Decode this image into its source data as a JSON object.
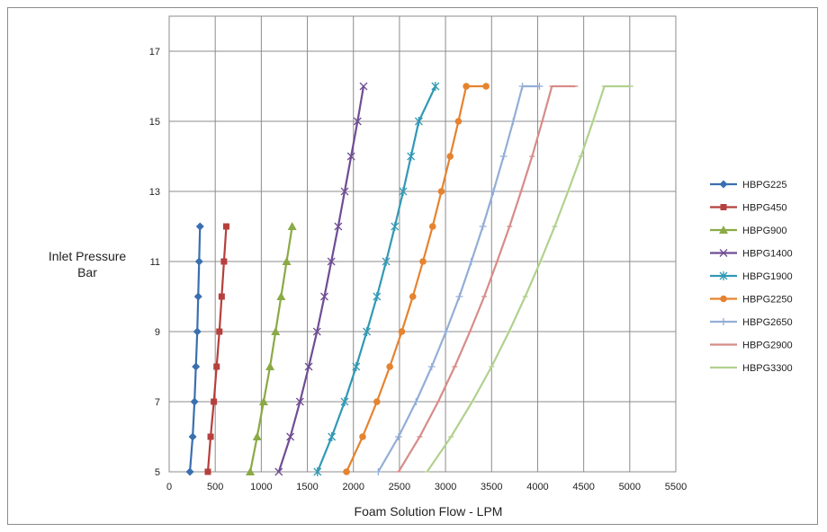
{
  "chart_data": {
    "type": "line",
    "title": "",
    "xlabel": "Foam Solution Flow - LPM",
    "ylabel_lines": [
      "Inlet Pressure",
      "Bar"
    ],
    "xlim": [
      0,
      5500
    ],
    "ylim": [
      5,
      18
    ],
    "xticks": [
      0,
      500,
      1000,
      1500,
      2000,
      2500,
      3000,
      3500,
      4000,
      4500,
      5000,
      5500
    ],
    "yticks": [
      5,
      7,
      9,
      11,
      13,
      15,
      17
    ],
    "grid": true,
    "legend_position": "right",
    "series": [
      {
        "name": "HBPG225",
        "color": "#3a6fb0",
        "marker": "diamond",
        "x": [
          225,
          255,
          275,
          290,
          305,
          315,
          325,
          335
        ],
        "y": [
          5,
          6,
          7,
          8,
          9,
          10,
          11,
          12
        ]
      },
      {
        "name": "HBPG450",
        "color": "#b5403d",
        "marker": "square",
        "x": [
          420,
          450,
          485,
          515,
          545,
          570,
          595,
          620
        ],
        "y": [
          5,
          6,
          7,
          8,
          9,
          10,
          11,
          12
        ]
      },
      {
        "name": "HBPG900",
        "color": "#8aaa45",
        "marker": "triangle",
        "x": [
          880,
          955,
          1025,
          1095,
          1155,
          1215,
          1275,
          1335
        ],
        "y": [
          5,
          6,
          7,
          8,
          9,
          10,
          11,
          12
        ]
      },
      {
        "name": "HBPG1400",
        "color": "#6f4d94",
        "marker": "x",
        "x": [
          1190,
          1315,
          1420,
          1515,
          1605,
          1685,
          1760,
          1835,
          1905,
          1975,
          2045,
          2110
        ],
        "y": [
          5,
          6,
          7,
          8,
          9,
          10,
          11,
          12,
          13,
          14,
          15,
          16
        ]
      },
      {
        "name": "HBPG1900",
        "color": "#3199b4",
        "marker": "asterisk",
        "x": [
          1610,
          1765,
          1905,
          2030,
          2145,
          2255,
          2355,
          2450,
          2540,
          2625,
          2710,
          2890
        ],
        "y": [
          5,
          6,
          7,
          8,
          9,
          10,
          11,
          12,
          13,
          14,
          15,
          16
        ]
      },
      {
        "name": "HBPG2250",
        "color": "#e5832f",
        "marker": "circle",
        "x": [
          1925,
          2100,
          2255,
          2395,
          2525,
          2645,
          2755,
          2860,
          2955,
          3050,
          3140,
          3225,
          3440
        ],
        "y": [
          5,
          6,
          7,
          8,
          9,
          10,
          11,
          12,
          13,
          14,
          15,
          16,
          16
        ]
      },
      {
        "name": "HBPG2650",
        "color": "#93aed6",
        "marker": "plus",
        "x": [
          2270,
          2490,
          2680,
          2850,
          3005,
          3150,
          3280,
          3405,
          3520,
          3630,
          3735,
          3835,
          4020
        ],
        "y": [
          5,
          6,
          7,
          8,
          9,
          10,
          11,
          12,
          13,
          14,
          15,
          16,
          16
        ]
      },
      {
        "name": "HBPG2900",
        "color": "#d68c89",
        "marker": "dash",
        "x": [
          2490,
          2720,
          2920,
          3100,
          3265,
          3420,
          3560,
          3695,
          3820,
          3940,
          4050,
          4155,
          4410
        ],
        "y": [
          5,
          6,
          7,
          8,
          9,
          10,
          11,
          12,
          13,
          14,
          15,
          16,
          16
        ]
      },
      {
        "name": "HBPG3300",
        "color": "#b1d18e",
        "marker": "dash",
        "x": [
          2800,
          3060,
          3290,
          3500,
          3690,
          3865,
          4030,
          4185,
          4330,
          4470,
          4600,
          4725,
          5010
        ],
        "y": [
          5,
          6,
          7,
          8,
          9,
          10,
          11,
          12,
          13,
          14,
          15,
          16,
          16
        ]
      }
    ]
  }
}
